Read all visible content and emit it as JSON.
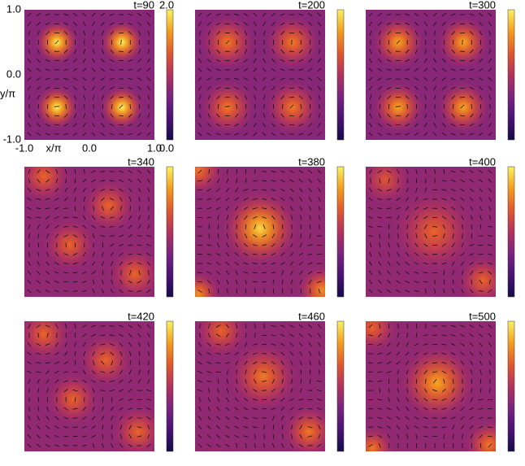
{
  "chart_data": {
    "type": "heatmap",
    "xlabel": "x/π",
    "ylabel": "y/π",
    "xlim": [
      -1,
      1
    ],
    "ylim": [
      -1,
      1
    ],
    "xticks": [
      {
        "value": -1,
        "label": "-1.0"
      },
      {
        "value": 0,
        "label": "0.0"
      },
      {
        "value": 1,
        "label": "1.0"
      }
    ],
    "yticks": [
      {
        "value": -1,
        "label": "-1.0"
      },
      {
        "value": 0,
        "label": "0.0"
      },
      {
        "value": 1,
        "label": "1.0"
      }
    ],
    "clim": [
      0,
      2
    ],
    "cticks": [
      {
        "value": 0,
        "label": "0.0"
      },
      {
        "value": 2,
        "label": "2.0"
      }
    ],
    "colormap": [
      "#140b4a",
      "#4a1275",
      "#7a2380",
      "#b3325e",
      "#e0582e",
      "#f59d1e",
      "#f8f260"
    ],
    "panels": [
      {
        "title": "t=90",
        "background": 0.75,
        "peaks": [
          {
            "x": -0.5,
            "y": 0.5,
            "amp": 2.0,
            "r": 0.35
          },
          {
            "x": 0.5,
            "y": 0.5,
            "amp": 2.0,
            "r": 0.35
          },
          {
            "x": -0.5,
            "y": -0.5,
            "amp": 2.0,
            "r": 0.35
          },
          {
            "x": 0.5,
            "y": -0.5,
            "amp": 2.0,
            "r": 0.35
          }
        ]
      },
      {
        "title": "t=200",
        "background": 0.75,
        "peaks": [
          {
            "x": -0.5,
            "y": 0.5,
            "amp": 1.5,
            "r": 0.45
          },
          {
            "x": 0.5,
            "y": 0.5,
            "amp": 1.5,
            "r": 0.45
          },
          {
            "x": -0.5,
            "y": -0.5,
            "amp": 1.5,
            "r": 0.45
          },
          {
            "x": 0.5,
            "y": -0.5,
            "amp": 1.5,
            "r": 0.45
          }
        ]
      },
      {
        "title": "t=300",
        "background": 0.75,
        "peaks": [
          {
            "x": -0.5,
            "y": 0.5,
            "amp": 1.7,
            "r": 0.42
          },
          {
            "x": 0.5,
            "y": 0.5,
            "amp": 1.7,
            "r": 0.42
          },
          {
            "x": -0.5,
            "y": -0.5,
            "amp": 1.7,
            "r": 0.42
          },
          {
            "x": 0.5,
            "y": -0.5,
            "amp": 1.7,
            "r": 0.42
          }
        ]
      },
      {
        "title": "t=340",
        "background": 0.8,
        "peaks": [
          {
            "x": -0.7,
            "y": 0.85,
            "amp": 1.4,
            "r": 0.42
          },
          {
            "x": 0.3,
            "y": 0.4,
            "amp": 1.4,
            "r": 0.42
          },
          {
            "x": -0.3,
            "y": -0.2,
            "amp": 1.4,
            "r": 0.42
          },
          {
            "x": 0.7,
            "y": -0.65,
            "amp": 1.4,
            "r": 0.42
          }
        ]
      },
      {
        "title": "t=380",
        "background": 0.8,
        "peaks": [
          {
            "x": 0.0,
            "y": 0.05,
            "amp": 1.9,
            "r": 0.6
          },
          {
            "x": -0.95,
            "y": 0.95,
            "amp": 1.5,
            "r": 0.4
          },
          {
            "x": 0.95,
            "y": -0.9,
            "amp": 1.6,
            "r": 0.4
          },
          {
            "x": -0.95,
            "y": -0.95,
            "amp": 1.6,
            "r": 0.35
          }
        ]
      },
      {
        "title": "t=400",
        "background": 0.8,
        "peaks": [
          {
            "x": 0.05,
            "y": 0.0,
            "amp": 1.4,
            "r": 0.65
          },
          {
            "x": -0.7,
            "y": 0.8,
            "amp": 1.3,
            "r": 0.4
          },
          {
            "x": 0.8,
            "y": -0.75,
            "amp": 1.4,
            "r": 0.4
          }
        ]
      },
      {
        "title": "t=420",
        "background": 0.8,
        "peaks": [
          {
            "x": -0.7,
            "y": 0.8,
            "amp": 1.4,
            "r": 0.42
          },
          {
            "x": 0.25,
            "y": 0.4,
            "amp": 1.4,
            "r": 0.42
          },
          {
            "x": -0.25,
            "y": -0.2,
            "amp": 1.4,
            "r": 0.42
          },
          {
            "x": 0.75,
            "y": -0.7,
            "amp": 1.4,
            "r": 0.42
          }
        ]
      },
      {
        "title": "t=460",
        "background": 0.8,
        "peaks": [
          {
            "x": -0.6,
            "y": 0.85,
            "amp": 1.4,
            "r": 0.42
          },
          {
            "x": 0.05,
            "y": 0.15,
            "amp": 1.5,
            "r": 0.55
          },
          {
            "x": 0.75,
            "y": -0.7,
            "amp": 1.5,
            "r": 0.42
          }
        ]
      },
      {
        "title": "t=500",
        "background": 0.8,
        "peaks": [
          {
            "x": 0.1,
            "y": 0.05,
            "amp": 1.7,
            "r": 0.6
          },
          {
            "x": -0.9,
            "y": 0.9,
            "amp": 1.4,
            "r": 0.4
          },
          {
            "x": 0.9,
            "y": -0.9,
            "amp": 1.5,
            "r": 0.4
          },
          {
            "x": -0.9,
            "y": -0.95,
            "amp": 1.5,
            "r": 0.35
          }
        ]
      }
    ]
  }
}
